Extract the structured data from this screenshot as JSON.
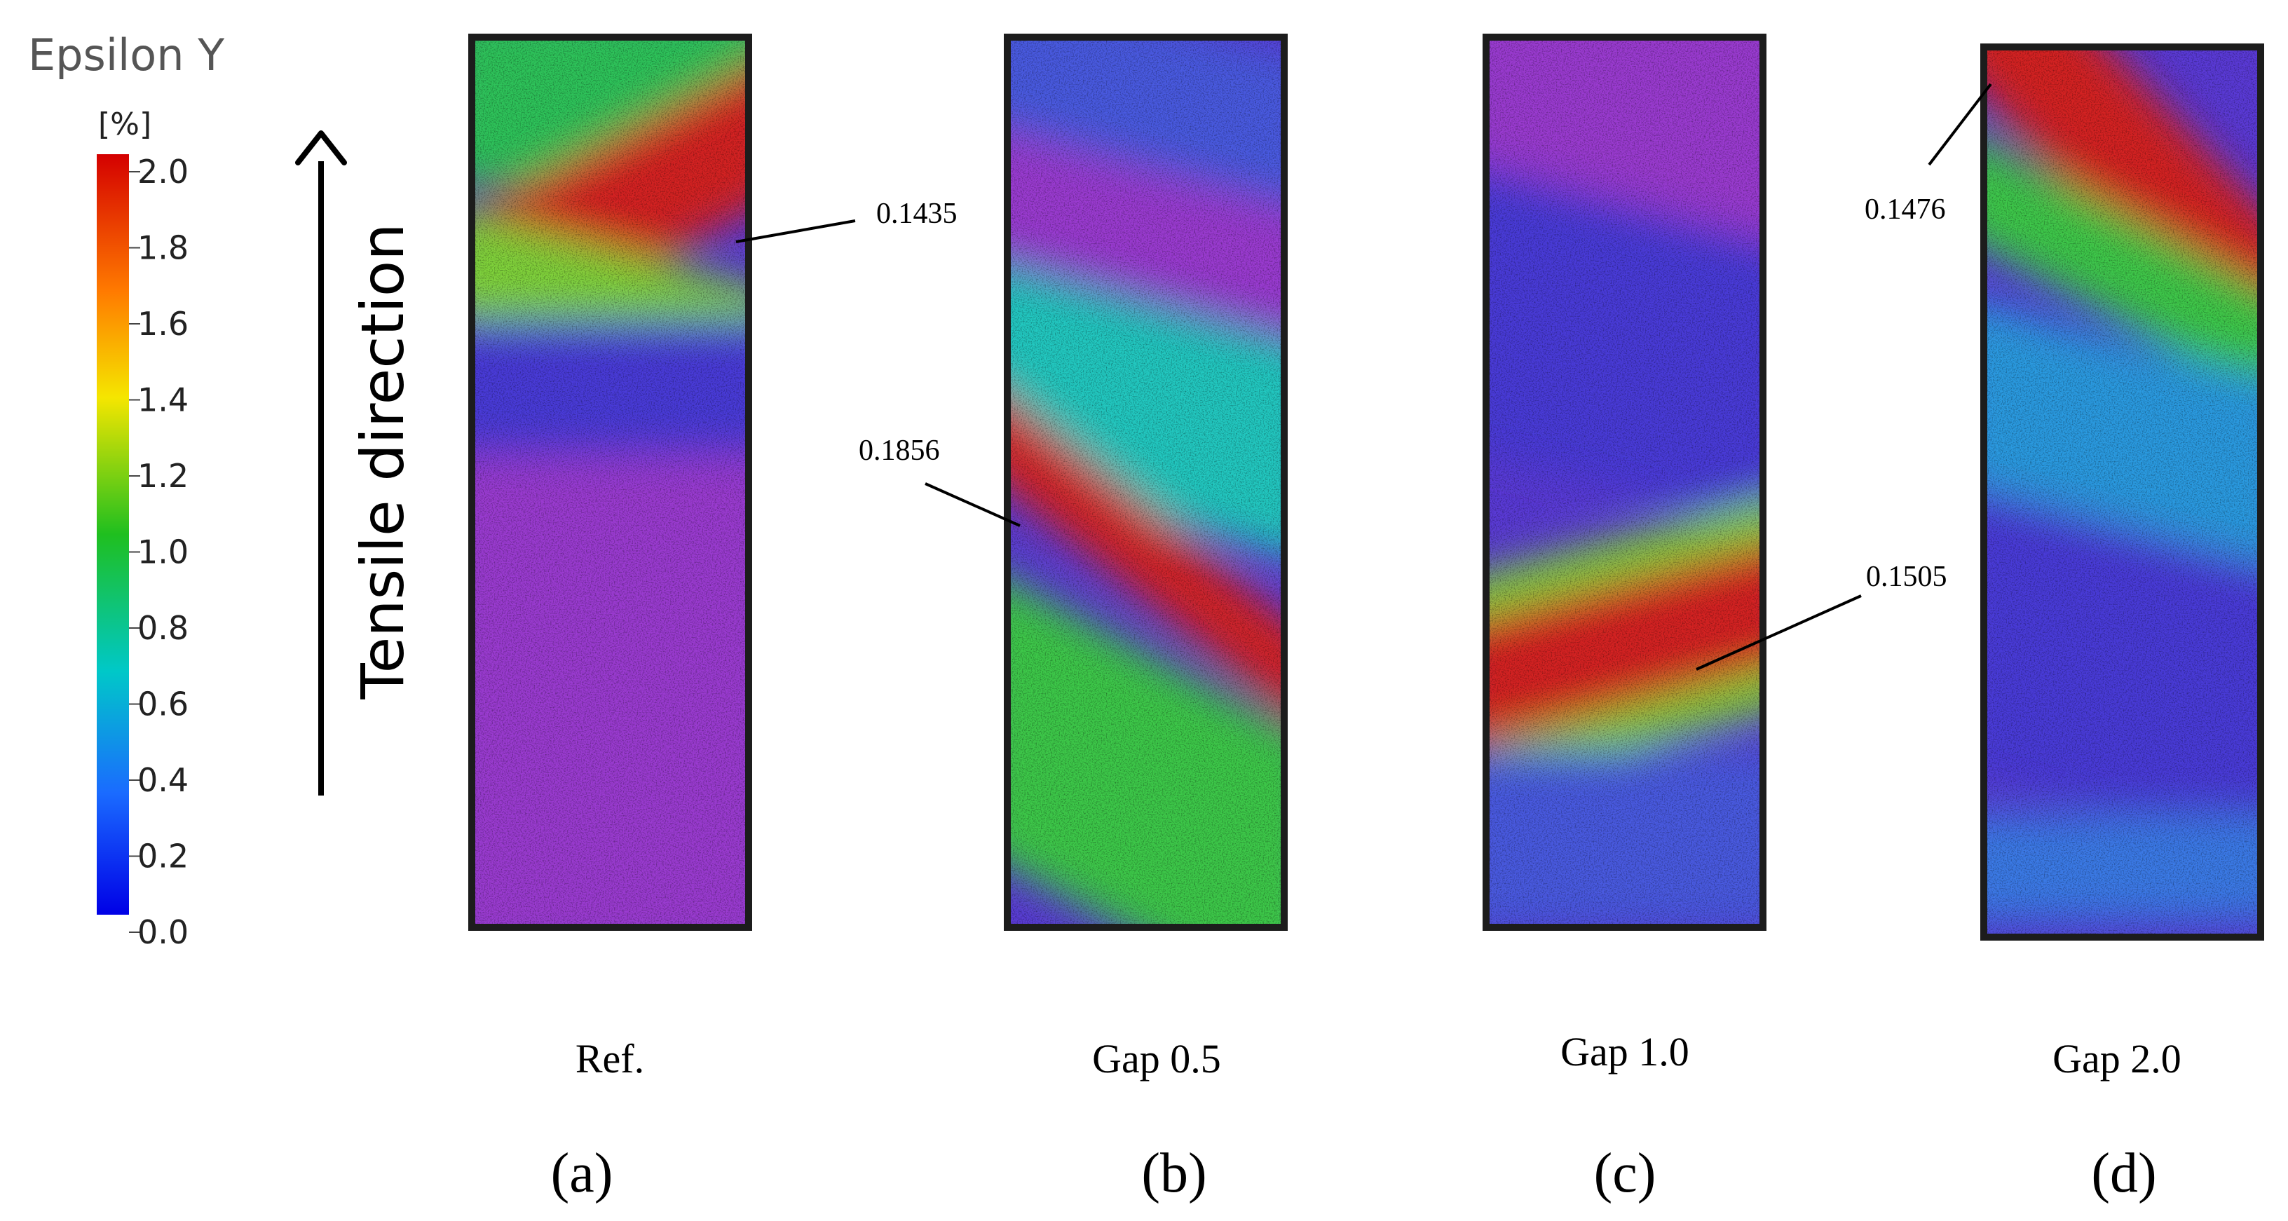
{
  "legend": {
    "title": "Epsilon Y",
    "unit": "[%]",
    "ticks": [
      "2.0",
      "1.8",
      "1.6",
      "1.4",
      "1.2",
      "1.0",
      "0.8",
      "0.6",
      "0.4",
      "0.2",
      "0.0"
    ],
    "colors": [
      "#d40000",
      "#ff7a00",
      "#f5e600",
      "#1fbf1f",
      "#00c8c8",
      "#1a6bff",
      "#0000e6"
    ]
  },
  "direction_label": "Tensile direction",
  "panels": [
    {
      "label": "Ref.",
      "letter": "(a)",
      "callouts": [
        {
          "text": "0.1435"
        }
      ],
      "field": [
        {
          "v": 0.9,
          "color": "#2ec35a"
        },
        {
          "v": 1.9,
          "color": "#d42020"
        },
        {
          "v": 1.2,
          "color": "#7fd23a"
        },
        {
          "v": 0.2,
          "color": "#4a3ad8"
        },
        {
          "v": 0.0,
          "color": "#9a3ad0"
        }
      ]
    },
    {
      "label": "Gap 0.5",
      "letter": "(b)",
      "callouts": [
        {
          "text": "0.1856"
        }
      ],
      "field": [
        {
          "v": 0.3,
          "color": "#4a5ae0"
        },
        {
          "v": 0.1,
          "color": "#9a3ad0"
        },
        {
          "v": 0.7,
          "color": "#24c8c0"
        },
        {
          "v": 1.9,
          "color": "#d42020"
        },
        {
          "v": 1.0,
          "color": "#3cc84a"
        }
      ]
    },
    {
      "label": "Gap 1.0",
      "letter": "(c)",
      "callouts": [
        {
          "text": "0.1505"
        }
      ],
      "field": [
        {
          "v": 0.1,
          "color": "#9a3ad0"
        },
        {
          "v": 0.2,
          "color": "#4a3ad8"
        },
        {
          "v": 1.1,
          "color": "#7fd23a"
        },
        {
          "v": 1.9,
          "color": "#d42020"
        },
        {
          "v": 0.3,
          "color": "#4a5ae0"
        }
      ]
    },
    {
      "label": "Gap 2.0",
      "letter": "(d)",
      "callouts": [
        {
          "text": "0.1476"
        }
      ],
      "field": [
        {
          "v": 1.9,
          "color": "#d42020"
        },
        {
          "v": 1.0,
          "color": "#3cc84a"
        },
        {
          "v": 0.5,
          "color": "#2a9ae0"
        },
        {
          "v": 0.2,
          "color": "#4a3ad8"
        },
        {
          "v": 0.4,
          "color": "#3a7ae6"
        }
      ]
    }
  ]
}
